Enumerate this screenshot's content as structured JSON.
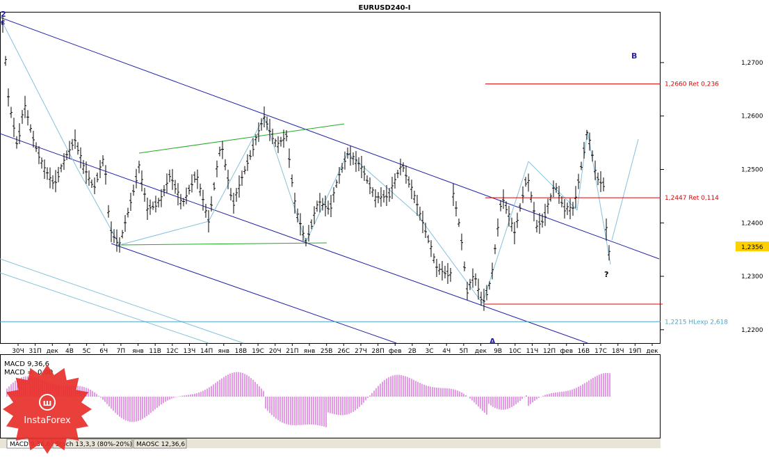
{
  "chart_data": {
    "type": "candlestick",
    "title": "EURUSD240-I",
    "ylim": [
      1.2175,
      1.2795
    ],
    "yticks": [
      "1,2700",
      "1,2600",
      "1,2500",
      "1,2400",
      "1,2300",
      "1,2200"
    ],
    "yticks_values": [
      1.27,
      1.26,
      1.25,
      1.24,
      1.23,
      1.22
    ],
    "x_labels": [
      "30Ч",
      "31П",
      "дек",
      "4В",
      "5С",
      "6Ч",
      "7П",
      "янв",
      "11В",
      "12С",
      "13Ч",
      "14П",
      "янв",
      "18В",
      "19С",
      "20Ч",
      "21П",
      "янв",
      "25В",
      "26С",
      "27Ч",
      "28П",
      "фев",
      "2В",
      "3С",
      "4Ч",
      "5П",
      "дек",
      "9В",
      "10С",
      "11Ч",
      "12П",
      "фев",
      "16В",
      "17С",
      "18Ч",
      "19П",
      "дек"
    ],
    "current_price": "1,2356",
    "current_price_value": 1.2356,
    "levels": [
      {
        "label": "1,2660 Ret 0,236",
        "value": 1.266,
        "color": "#dd0000"
      },
      {
        "label": "1,2447 Ret 0,114",
        "value": 1.2447,
        "color": "#dd0000"
      },
      {
        "label": "1,2215 HLexp 2,618",
        "value": 1.2215,
        "color": "#4aa6c8"
      }
    ],
    "wave_labels": {
      "top_left": [
        "2",
        "c"
      ],
      "big_right": "B",
      "bottom_mid": "A",
      "question": "?"
    }
  },
  "indicator": {
    "name": "MACD 9,36,6",
    "value_label": "MACD =",
    "value": "0.00",
    "ylim": [
      -1,
      1
    ]
  },
  "tabs": [
    {
      "label": "MACD 9,36,6"
    },
    {
      "label": "Stoch 13,3,3 (80%-20%)"
    },
    {
      "label": "MAOSC 12,36,6"
    }
  ],
  "logo": {
    "text": "InstaForex"
  },
  "colors": {
    "channel": "#2323a8",
    "channel_light": "#86c0dc",
    "green": "#22aa22",
    "red": "#dd0000",
    "macd": "#cc33cc"
  }
}
